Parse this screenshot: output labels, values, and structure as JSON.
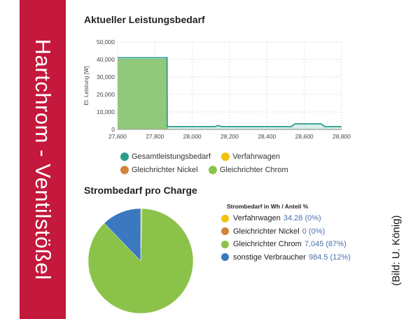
{
  "side_title": "Hartchrom - Ventilstößel",
  "credit": "(Bild: U. König)",
  "chart_data": [
    {
      "type": "area",
      "title": "Aktueller Leistungsbedarf",
      "ylabel": "El. Leistung [W]",
      "xlabel": "",
      "xlim": [
        27600,
        28800
      ],
      "ylim": [
        0,
        50000
      ],
      "xticks": [
        "27,600",
        "27,800",
        "28,000",
        "28,200",
        "28,400",
        "28,600",
        "28,800"
      ],
      "yticks": [
        "0",
        "10,000",
        "20,000",
        "30,000",
        "40,000",
        "50,000"
      ],
      "grid": true,
      "series": [
        {
          "name": "Gesamtleistungsbedarf",
          "color": "#2a9d8f",
          "x": [
            27600,
            27865,
            27866,
            28120,
            28140,
            28160,
            28530,
            28550,
            28690,
            28710,
            28800
          ],
          "y": [
            41000,
            41000,
            1600,
            1600,
            2200,
            1600,
            1600,
            3200,
            3200,
            1600,
            1600
          ]
        },
        {
          "name": "Verfahrwagen",
          "color": "#f4c20d",
          "x": [
            27600,
            28800
          ],
          "y": [
            0,
            0
          ]
        },
        {
          "name": "Gleichrichter Nickel",
          "color": "#d2833a",
          "x": [
            27600,
            28800
          ],
          "y": [
            0,
            0
          ]
        },
        {
          "name": "Gleichrichter Chrom",
          "color": "#8bc34a",
          "x": [
            27600,
            27865,
            27866,
            28800
          ],
          "y": [
            40000,
            40000,
            0,
            0
          ]
        }
      ],
      "legend": "bottom"
    },
    {
      "type": "pie",
      "title": "Strombedarf pro Charge",
      "legend_title": "Strombedarf in Wh / Anteil %",
      "slices": [
        {
          "label": "Verfahrwagen",
          "value": 34.28,
          "value_text": "34.28 (0%)",
          "color": "#f4c20d"
        },
        {
          "label": "Gleichrichter Nickel",
          "value": 0,
          "value_text": "0 (0%)",
          "color": "#d2833a"
        },
        {
          "label": "Gleichrichter Chrom",
          "value": 7045,
          "value_text": "7,045 (87%)",
          "color": "#8bc34a"
        },
        {
          "label": "sonstige Verbraucher",
          "value": 984.5,
          "value_text": "984.5 (12%)",
          "color": "#3a78c0"
        }
      ],
      "legend": "right"
    }
  ]
}
